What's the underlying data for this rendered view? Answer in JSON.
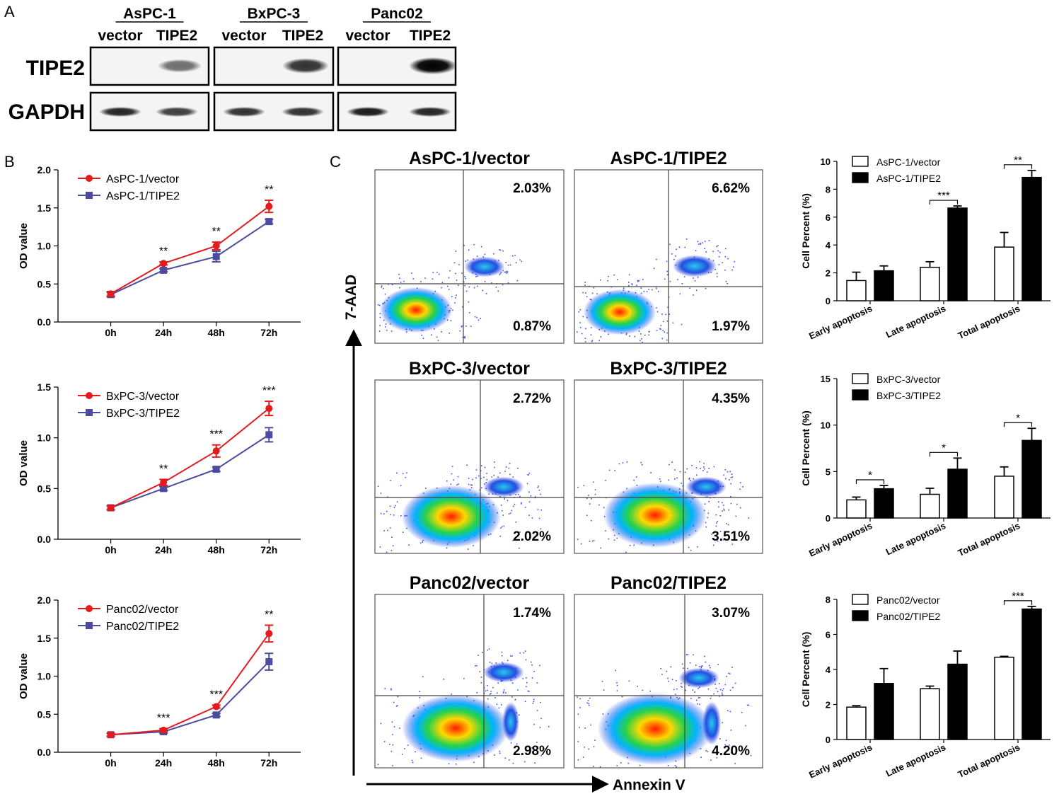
{
  "panel_letters": {
    "a": "A",
    "b": "B",
    "c": "C"
  },
  "western_blot": {
    "cell_lines": [
      "AsPC-1",
      "BxPC-3",
      "Panc02"
    ],
    "lane_labels": [
      "vector",
      "TIPE2",
      "vector",
      "TIPE2",
      "vector",
      "TIPE2"
    ],
    "row_labels": [
      "TIPE2",
      "GAPDH"
    ],
    "tipe2_band_intensity": [
      0,
      0.55,
      0,
      0.8,
      0,
      1.0
    ],
    "gapdh_band_intensity": [
      0.85,
      0.75,
      0.8,
      0.8,
      0.9,
      0.85
    ]
  },
  "flow": {
    "titles": [
      "AsPC-1/vector",
      "AsPC-1/TIPE2",
      "BxPC-3/vector",
      "BxPC-3/TIPE2",
      "Panc02/vector",
      "Panc02/TIPE2"
    ],
    "upper_right": [
      "2.03%",
      "6.62%",
      "2.72%",
      "4.35%",
      "1.74%",
      "3.07%"
    ],
    "lower_right": [
      "0.87%",
      "1.97%",
      "2.02%",
      "3.51%",
      "2.98%",
      "4.20%"
    ],
    "y_label": "7-AAD",
    "x_label": "Annexin V"
  },
  "chart_data": [
    {
      "type": "line",
      "panel": "B",
      "categories": [
        "0h",
        "24h",
        "48h",
        "72h"
      ],
      "ylabel": "OD value",
      "ylim": [
        0,
        2.0
      ],
      "yticks": [
        "0.0",
        "0.5",
        "1.0",
        "1.5",
        "2.0"
      ],
      "series": [
        {
          "name": "AsPC-1/vector",
          "values": [
            0.37,
            0.77,
            1.0,
            1.52
          ],
          "err": [
            0.03,
            0.02,
            0.05,
            0.08
          ],
          "color": "#e41a1c"
        },
        {
          "name": "AsPC-1/TIPE2",
          "values": [
            0.36,
            0.68,
            0.86,
            1.32
          ],
          "err": [
            0.03,
            0.02,
            0.07,
            0.03
          ],
          "color": "#4b4ba0"
        }
      ],
      "significance": [
        "",
        "**",
        "**",
        "**"
      ]
    },
    {
      "type": "line",
      "panel": "B",
      "categories": [
        "0h",
        "24h",
        "48h",
        "72h"
      ],
      "ylabel": "OD value",
      "ylim": [
        0,
        1.5
      ],
      "yticks": [
        "0.0",
        "0.5",
        "1.0",
        "1.5"
      ],
      "series": [
        {
          "name": "BxPC-3/vector",
          "values": [
            0.31,
            0.56,
            0.87,
            1.29
          ],
          "err": [
            0.02,
            0.03,
            0.06,
            0.07
          ],
          "color": "#e41a1c"
        },
        {
          "name": "BxPC-3/TIPE2",
          "values": [
            0.31,
            0.5,
            0.69,
            1.03
          ],
          "err": [
            0.02,
            0.02,
            0.02,
            0.07
          ],
          "color": "#4b4ba0"
        }
      ],
      "significance": [
        "",
        "**",
        "***",
        "***"
      ]
    },
    {
      "type": "line",
      "panel": "B",
      "categories": [
        "0h",
        "24h",
        "48h",
        "72h"
      ],
      "ylabel": "OD value",
      "ylim": [
        0,
        2.0
      ],
      "yticks": [
        "0.0",
        "0.5",
        "1.0",
        "1.5",
        "2.0"
      ],
      "series": [
        {
          "name": "Panc02/vector",
          "values": [
            0.23,
            0.29,
            0.6,
            1.56
          ],
          "err": [
            0.02,
            0.02,
            0.02,
            0.11
          ],
          "color": "#e41a1c"
        },
        {
          "name": "Panc02/TIPE2",
          "values": [
            0.23,
            0.27,
            0.49,
            1.19
          ],
          "err": [
            0.02,
            0.02,
            0.02,
            0.11
          ],
          "color": "#4b4ba0"
        }
      ],
      "significance": [
        "",
        "***",
        "***",
        "**"
      ]
    },
    {
      "type": "bar",
      "panel": "C",
      "categories": [
        "Early apoptosis",
        "Late apoptosis",
        "Total apoptosis"
      ],
      "ylabel": "Cell Percent (%)",
      "ylim": [
        0,
        10
      ],
      "yticks": [
        "0",
        "2",
        "4",
        "6",
        "8",
        "10"
      ],
      "series": [
        {
          "name": "AsPC-1/vector",
          "values": [
            1.45,
            2.4,
            3.85
          ],
          "err": [
            0.6,
            0.4,
            1.05
          ],
          "fill": "#ffffff"
        },
        {
          "name": "AsPC-1/TIPE2",
          "values": [
            2.15,
            6.65,
            8.85
          ],
          "err": [
            0.35,
            0.15,
            0.5
          ],
          "fill": "#000000"
        }
      ],
      "significance": [
        "",
        "***",
        "**"
      ]
    },
    {
      "type": "bar",
      "panel": "C",
      "categories": [
        "Early apoptosis",
        "Late apoptosis",
        "Total apoptosis"
      ],
      "ylabel": "Cell Percent (%)",
      "ylim": [
        0,
        15
      ],
      "yticks": [
        "0",
        "5",
        "10",
        "15"
      ],
      "series": [
        {
          "name": "BxPC-3/vector",
          "values": [
            1.95,
            2.55,
            4.5
          ],
          "err": [
            0.3,
            0.65,
            1.0
          ],
          "fill": "#ffffff"
        },
        {
          "name": "BxPC-3/TIPE2",
          "values": [
            3.15,
            5.25,
            8.35
          ],
          "err": [
            0.35,
            1.2,
            1.3
          ],
          "fill": "#000000"
        }
      ],
      "significance": [
        "*",
        "*",
        "*"
      ]
    },
    {
      "type": "bar",
      "panel": "C",
      "categories": [
        "Early apoptosis",
        "Late apoptosis",
        "Total apoptosis"
      ],
      "ylabel": "Cell Percent (%)",
      "ylim": [
        0,
        8
      ],
      "yticks": [
        "0",
        "2",
        "4",
        "6",
        "8"
      ],
      "series": [
        {
          "name": "Panc02/vector",
          "values": [
            1.85,
            2.9,
            4.7
          ],
          "err": [
            0.08,
            0.15,
            0.05
          ],
          "fill": "#ffffff"
        },
        {
          "name": "Panc02/TIPE2",
          "values": [
            3.2,
            4.3,
            7.45
          ],
          "err": [
            0.85,
            0.75,
            0.15
          ],
          "fill": "#000000"
        }
      ],
      "significance": [
        "",
        "",
        "***"
      ]
    }
  ]
}
